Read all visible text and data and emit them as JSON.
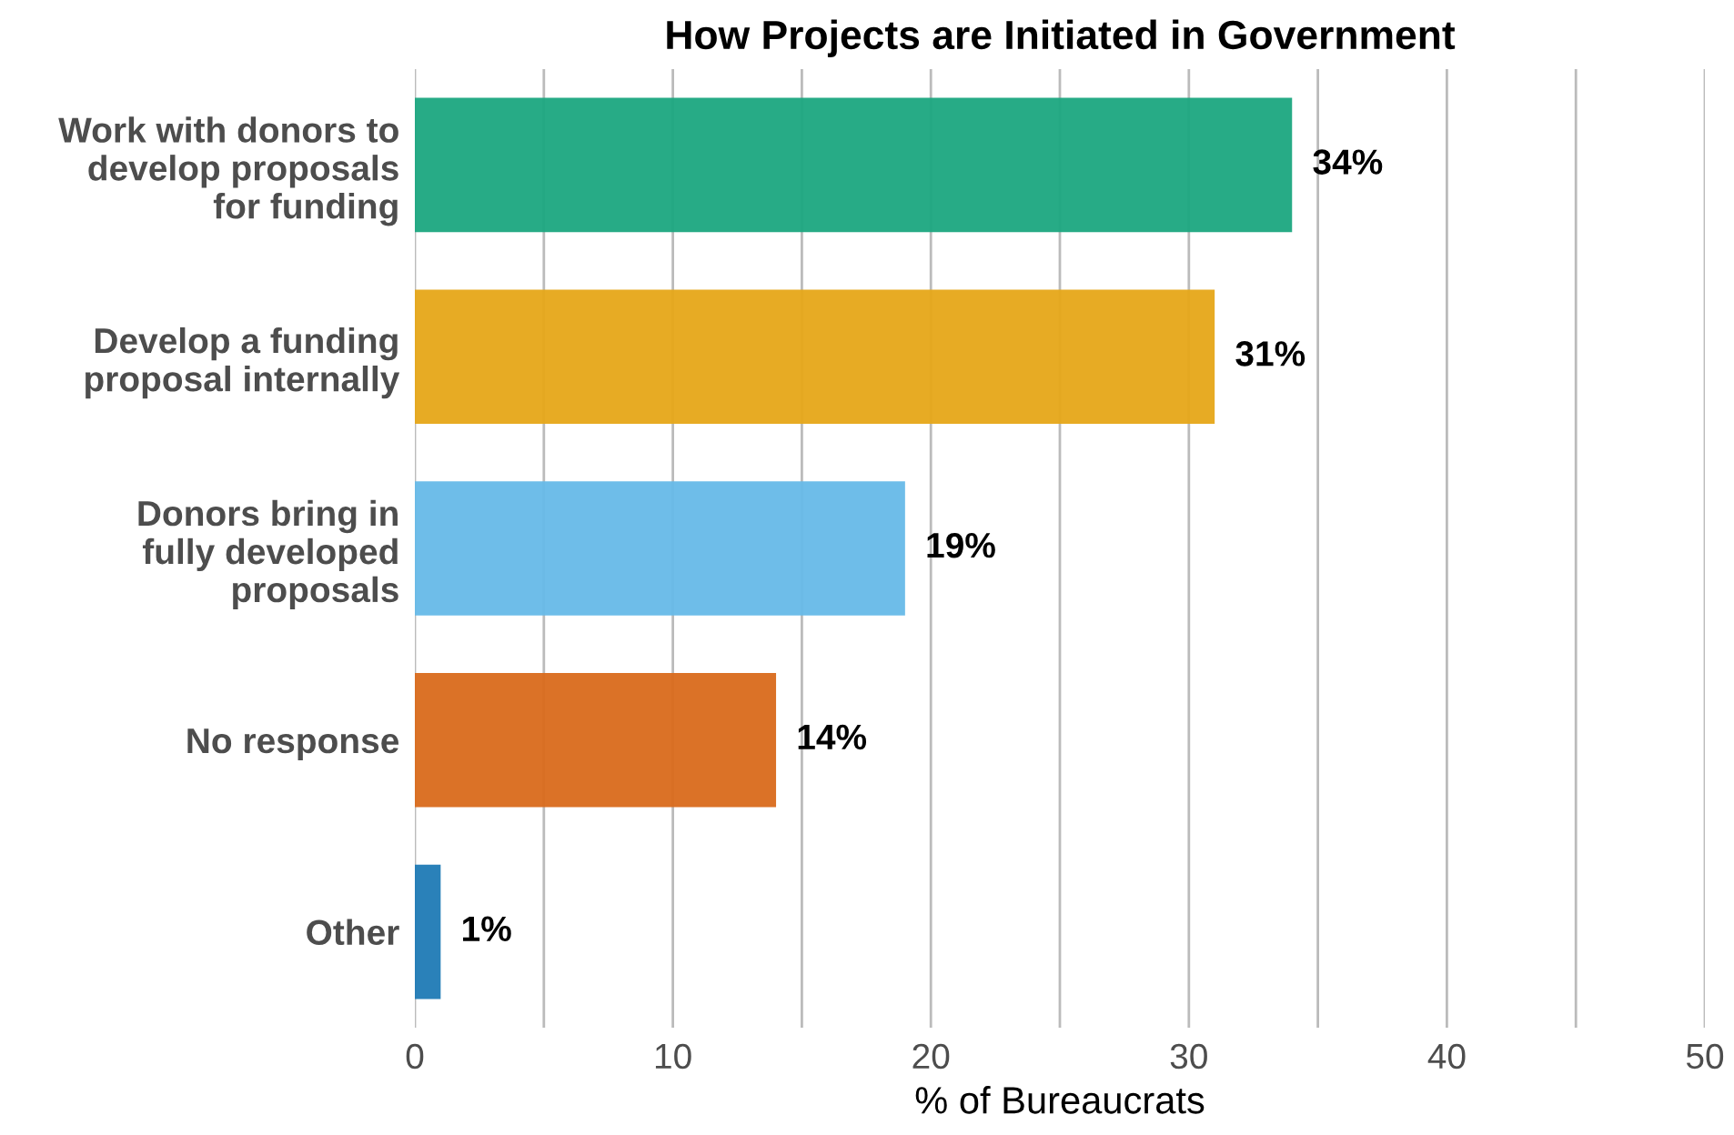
{
  "chart_data": {
    "type": "bar",
    "orientation": "horizontal",
    "title": "How Projects are Initiated in Government",
    "xlabel": "% of Bureaucrats",
    "categories": [
      "Work with donors to\ndevelop proposals\nfor funding",
      "Develop a funding\nproposal internally",
      "Donors bring in\nfully developed\nproposals",
      "No response",
      "Other"
    ],
    "values": [
      34,
      31,
      19,
      14,
      1
    ],
    "colors": [
      "#1ba77f",
      "#e6a718",
      "#66b9e8",
      "#d96a1b",
      "#1f7ab5"
    ],
    "value_labels": [
      "34%",
      "31%",
      "19%",
      "14%",
      "1%"
    ],
    "xlim": [
      0,
      50
    ],
    "xticks": [
      0,
      {
        "value": 5,
        "label": null
      },
      10,
      {
        "value": 15,
        "label": null
      },
      20,
      {
        "value": 25,
        "label": null
      },
      30,
      {
        "value": 35,
        "label": null
      },
      40,
      {
        "value": 45,
        "label": null
      },
      50
    ],
    "grid": "x"
  }
}
